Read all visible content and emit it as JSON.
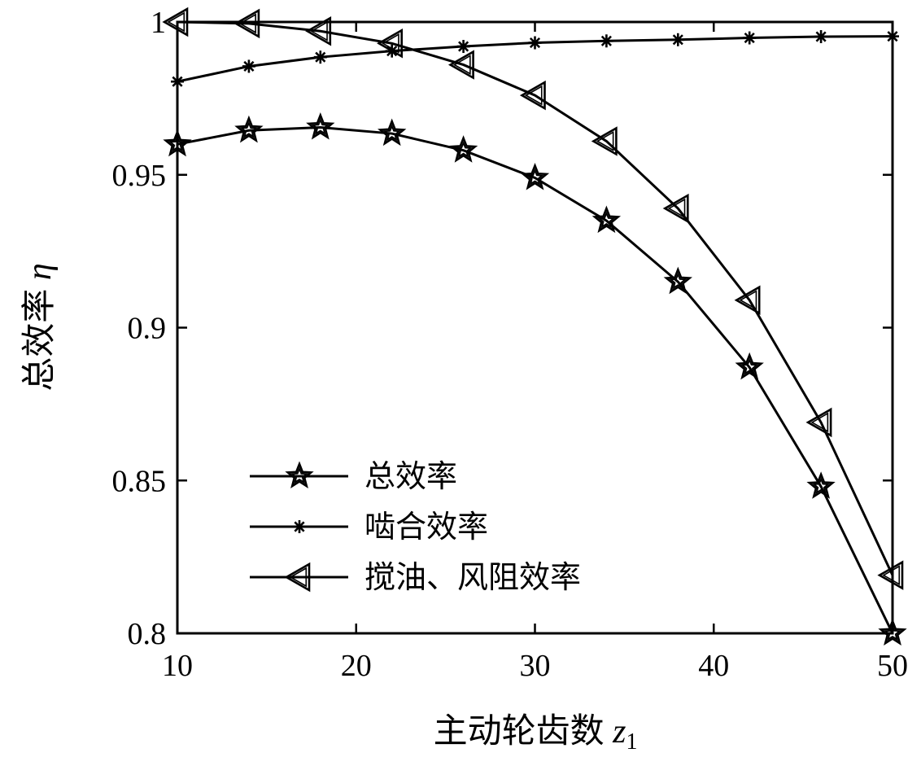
{
  "chart_data": {
    "type": "line",
    "title": "",
    "xlabel": "主动轮齿数",
    "xlabel_symbol": "z",
    "xlabel_subscript": "1",
    "ylabel": "总效率",
    "ylabel_symbol": "η",
    "xlim": [
      10,
      50
    ],
    "ylim": [
      0.8,
      1.0
    ],
    "xticks": [
      "10",
      "20",
      "30",
      "40",
      "50"
    ],
    "yticks": [
      "0.8",
      "0.85",
      "0.9",
      "0.95",
      "1"
    ],
    "grid": false,
    "legend_position": "bottom-left",
    "x": [
      10,
      14,
      18,
      22,
      26,
      30,
      34,
      38,
      42,
      46,
      50
    ],
    "series": [
      {
        "name": "总效率",
        "marker": "star",
        "values": [
          0.96,
          0.9645,
          0.9655,
          0.9635,
          0.958,
          0.949,
          0.935,
          0.915,
          0.887,
          0.848,
          0.8
        ]
      },
      {
        "name": "啮合效率",
        "marker": "asterisk",
        "values": [
          0.9805,
          0.9855,
          0.9885,
          0.9905,
          0.992,
          0.9932,
          0.9938,
          0.9942,
          0.9948,
          0.9952,
          0.9953
        ]
      },
      {
        "name": "搅油、风阻效率",
        "marker": "triangle-left",
        "values": [
          1.0,
          0.9995,
          0.997,
          0.993,
          0.986,
          0.976,
          0.961,
          0.939,
          0.909,
          0.869,
          0.819
        ]
      }
    ]
  }
}
